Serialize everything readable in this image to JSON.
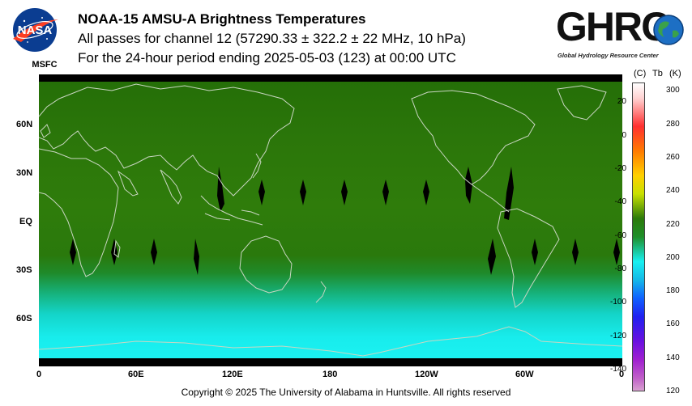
{
  "header": {
    "logo_left_text": "NASA",
    "logo_left_sub": "MSFC",
    "title": "NOAA-15 AMSU-A Brightness Temperatures",
    "line2": "All passes for channel 12 (57290.33 ± 322.2 ± 22 MHz, 10 hPa)",
    "line3": "For the 24-hour period ending 2025-05-03 (123) at 00:00 UTC"
  },
  "ghrc_logo": {
    "word": "GHRC",
    "subtitle": "Global Hydrology Resource Center"
  },
  "map": {
    "lat_labels": [
      "60N",
      "30N",
      "EQ",
      "30S",
      "60S"
    ],
    "lon_labels": [
      "0",
      "60E",
      "120E",
      "180",
      "120W",
      "60W",
      "0"
    ],
    "colors": {
      "tropics_green": "#2c7a0a",
      "high_lat_green": "#236f08",
      "southern_cyan": "#18f0f0",
      "coastline": "#c9d6c2",
      "polar_band": "#000000"
    }
  },
  "colorbar": {
    "unit_c": "(C)",
    "unit_tb": "Tb",
    "unit_k": "(K)",
    "celsius_ticks": [
      "20",
      "0",
      "-20",
      "-40",
      "-60",
      "-80",
      "-100",
      "-120",
      "-140"
    ],
    "kelvin_ticks": [
      "300",
      "280",
      "260",
      "240",
      "220",
      "200",
      "180",
      "160",
      "140",
      "120"
    ],
    "celsius_values": [
      20,
      0,
      -20,
      -40,
      -60,
      -80,
      -100,
      -120,
      -140
    ],
    "kelvin_values": [
      300,
      280,
      260,
      240,
      220,
      200,
      180,
      160,
      140,
      120
    ]
  },
  "footer": {
    "copyright": "Copyright © 2025 The University of Alabama in Huntsville.  All rights reserved"
  }
}
